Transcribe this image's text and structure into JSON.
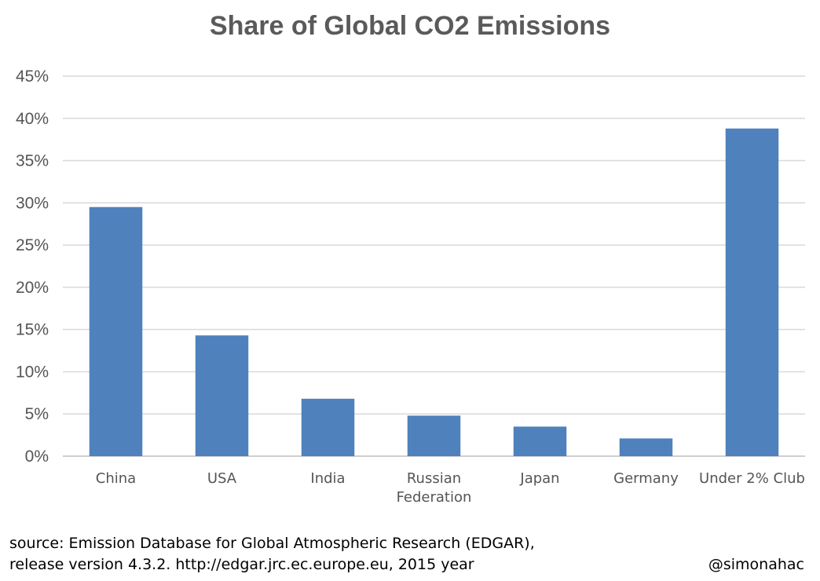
{
  "chart_data": {
    "type": "bar",
    "title": "Share of Global CO2 Emissions",
    "categories": [
      "China",
      "USA",
      "India",
      "Russian Federation",
      "Japan",
      "Germany",
      "Under 2% Club"
    ],
    "category_lines": [
      [
        "China"
      ],
      [
        "USA"
      ],
      [
        "India"
      ],
      [
        "Russian",
        "Federation"
      ],
      [
        "Japan"
      ],
      [
        "Germany"
      ],
      [
        "Under 2% Club"
      ]
    ],
    "values": [
      29.5,
      14.3,
      6.8,
      4.8,
      3.5,
      2.1,
      38.8
    ],
    "ylim": [
      0,
      45
    ],
    "yticks": [
      0,
      5,
      10,
      15,
      20,
      25,
      30,
      35,
      40,
      45
    ],
    "ytick_labels": [
      "0%",
      "5%",
      "10%",
      "15%",
      "20%",
      "25%",
      "30%",
      "35%",
      "40%",
      "45%"
    ],
    "xlabel": "",
    "ylabel": "",
    "grid": true,
    "bar_color": "#4f81bd"
  },
  "footer": {
    "source_line1": "source: Emission Database for Global Atmospheric Research (EDGAR),",
    "source_line2": "release version 4.3.2. http://edgar.jrc.ec.europe.eu, 2015 year",
    "credit": "@simonahac"
  }
}
